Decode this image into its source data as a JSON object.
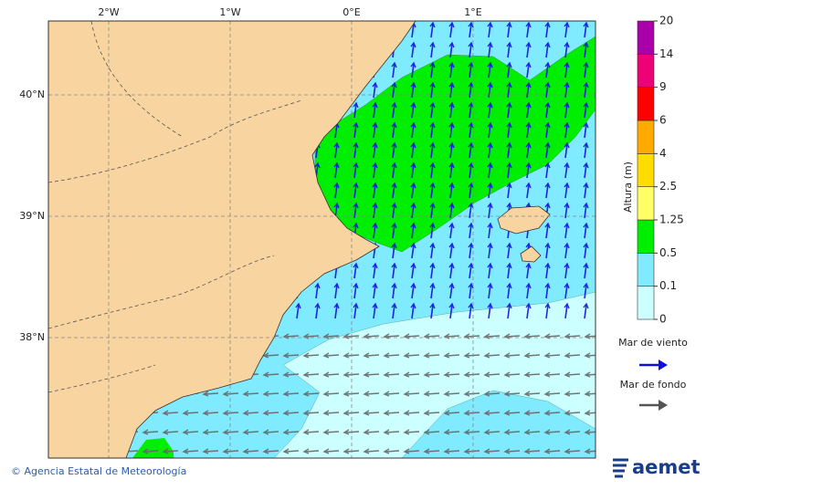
{
  "map": {
    "lon_labels": [
      "2°W",
      "1°W",
      "0°E",
      "1°E"
    ],
    "lat_labels": [
      "40°N",
      "39°N",
      "38°N"
    ]
  },
  "colorbar": {
    "title": "Altura (m)",
    "levels": [
      0,
      0.1,
      0.5,
      1.25,
      2.5,
      4,
      6,
      9,
      14,
      20
    ],
    "colors": [
      "#ccffff",
      "#80eaff",
      "#00ee00",
      "#ffff66",
      "#ffdd00",
      "#ffaa00",
      "#ff0000",
      "#ee0077",
      "#aa00aa"
    ]
  },
  "legend": {
    "wind_sea": "Mar de viento",
    "swell": "Mar de fondo"
  },
  "footer": {
    "copyright": "© Agencia Estatal de Meteorología",
    "logo": "aemet"
  }
}
